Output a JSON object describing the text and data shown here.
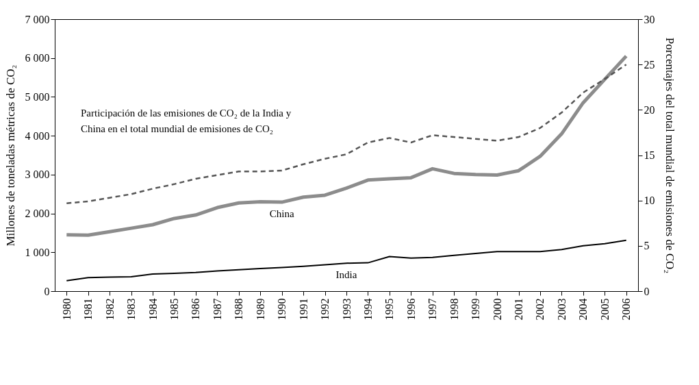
{
  "chart_data": {
    "type": "line",
    "categories": [
      "1980",
      "1981",
      "1982",
      "1983",
      "1984",
      "1985",
      "1986",
      "1987",
      "1988",
      "1989",
      "1990",
      "1991",
      "1992",
      "1993",
      "1994",
      "1995",
      "1996",
      "1997",
      "1998",
      "1999",
      "2000",
      "2001",
      "2002",
      "2003",
      "2004",
      "2005",
      "2006"
    ],
    "series": [
      {
        "name": "China",
        "color": "#8c8c8c",
        "values": [
          1450,
          1440,
          1530,
          1620,
          1710,
          1870,
          1960,
          2150,
          2270,
          2300,
          2290,
          2420,
          2470,
          2650,
          2860,
          2890,
          2920,
          3150,
          3030,
          3000,
          2990,
          3100,
          3470,
          4050,
          4850,
          5450,
          6050
        ]
      },
      {
        "name": "India",
        "color": "#000000",
        "values": [
          270,
          350,
          360,
          370,
          440,
          460,
          480,
          520,
          550,
          580,
          610,
          640,
          680,
          720,
          730,
          890,
          850,
          870,
          920,
          970,
          1020,
          1020,
          1020,
          1070,
          1170,
          1220,
          1310
        ]
      },
      {
        "color": "#555555",
        "axis": "y2",
        "line_style": "dashed",
        "values": [
          9.7,
          9.9,
          10.3,
          10.7,
          11.3,
          11.8,
          12.4,
          12.8,
          13.2,
          13.2,
          13.3,
          14.0,
          14.6,
          15.1,
          16.4,
          16.9,
          16.4,
          17.2,
          17.0,
          16.8,
          16.6,
          17.0,
          18.0,
          19.7,
          21.9,
          23.4,
          25.0
        ]
      }
    ],
    "ylabel": "Millones de toneladas métricas de CO₂",
    "y2label": "Porcentajes del total mundial de emisiones de CO₂",
    "ylim": [
      0,
      7000
    ],
    "yticks": [
      0,
      {
        "value": 1000,
        "label": "1 000"
      },
      {
        "value": 2000,
        "label": "2 000"
      },
      {
        "value": 3000,
        "label": "3 000"
      },
      {
        "value": 4000,
        "label": "4 000"
      },
      {
        "value": 5000,
        "label": "5 000"
      },
      {
        "value": 6000,
        "label": "6 000"
      },
      {
        "value": 7000,
        "label": "7 000"
      }
    ],
    "y2lim": [
      0,
      30
    ],
    "y2ticks": [
      0,
      5,
      10,
      15,
      20,
      25,
      30
    ],
    "annotations": [
      "Participación de las emisiones de CO₂ de la India y China en el total mundial de emisiones de CO₂"
    ],
    "grid": false,
    "legend": false,
    "marker": "none",
    "line_style": "solid"
  }
}
